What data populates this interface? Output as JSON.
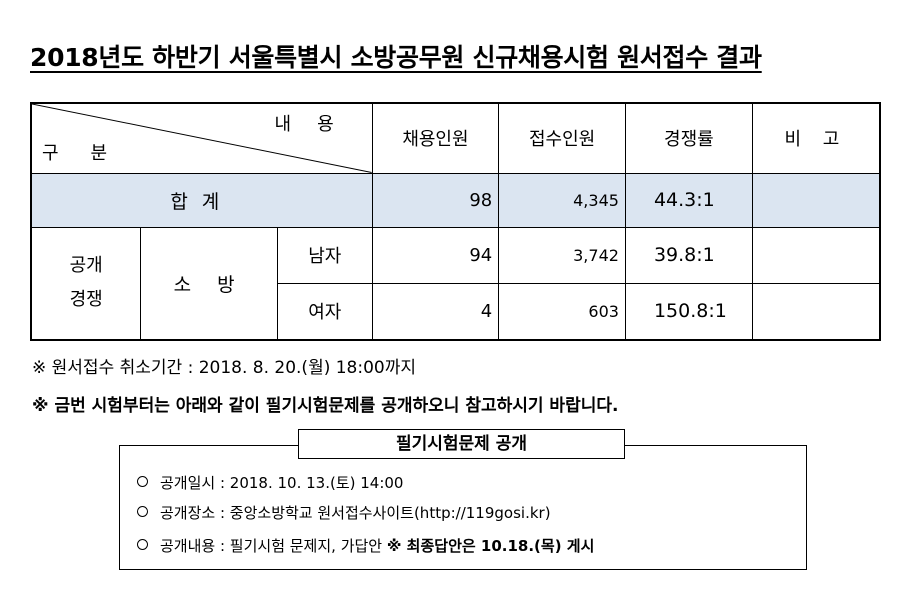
{
  "title": "2018년도 하반기 서울특별시 소방공무원 신규채용시험 원서접수 결과",
  "table": {
    "header": {
      "diag_top": "내용",
      "diag_bottom": "구분",
      "cols": [
        "채용인원",
        "접수인원",
        "경쟁률",
        "비 고"
      ]
    },
    "total": {
      "label": "합계",
      "recruit": "98",
      "applied": "4,345",
      "ratio": "44.3:1",
      "note": ""
    },
    "group1": "공개 경쟁",
    "group2": "소 방",
    "rows": [
      {
        "label": "남자",
        "recruit": "94",
        "applied": "3,742",
        "ratio": "39.8:1",
        "note": ""
      },
      {
        "label": "여자",
        "recruit": "4",
        "applied": "603",
        "ratio": "150.8:1",
        "note": ""
      }
    ]
  },
  "notes": [
    "※ 원서접수 취소기간 : 2018. 8. 20.(월) 18:00까지",
    "※ 금번 시험부터는 아래와 같이 필기시험문제를 공개하오니 참고하시기 바랍니다."
  ],
  "box": {
    "title": "필기시험문제 공개",
    "items": [
      {
        "label": "공개일시 : 2018. 10. 13.(토) 14:00",
        "extra": ""
      },
      {
        "label": "공개장소 : 중앙소방학교 원서접수사이트(http://119gosi.kr)",
        "extra": ""
      },
      {
        "label": "공개내용 : 필기시험 문제지, 가답안 ",
        "extra": "※ 최종답안은 10.18.(목) 게시"
      }
    ]
  }
}
